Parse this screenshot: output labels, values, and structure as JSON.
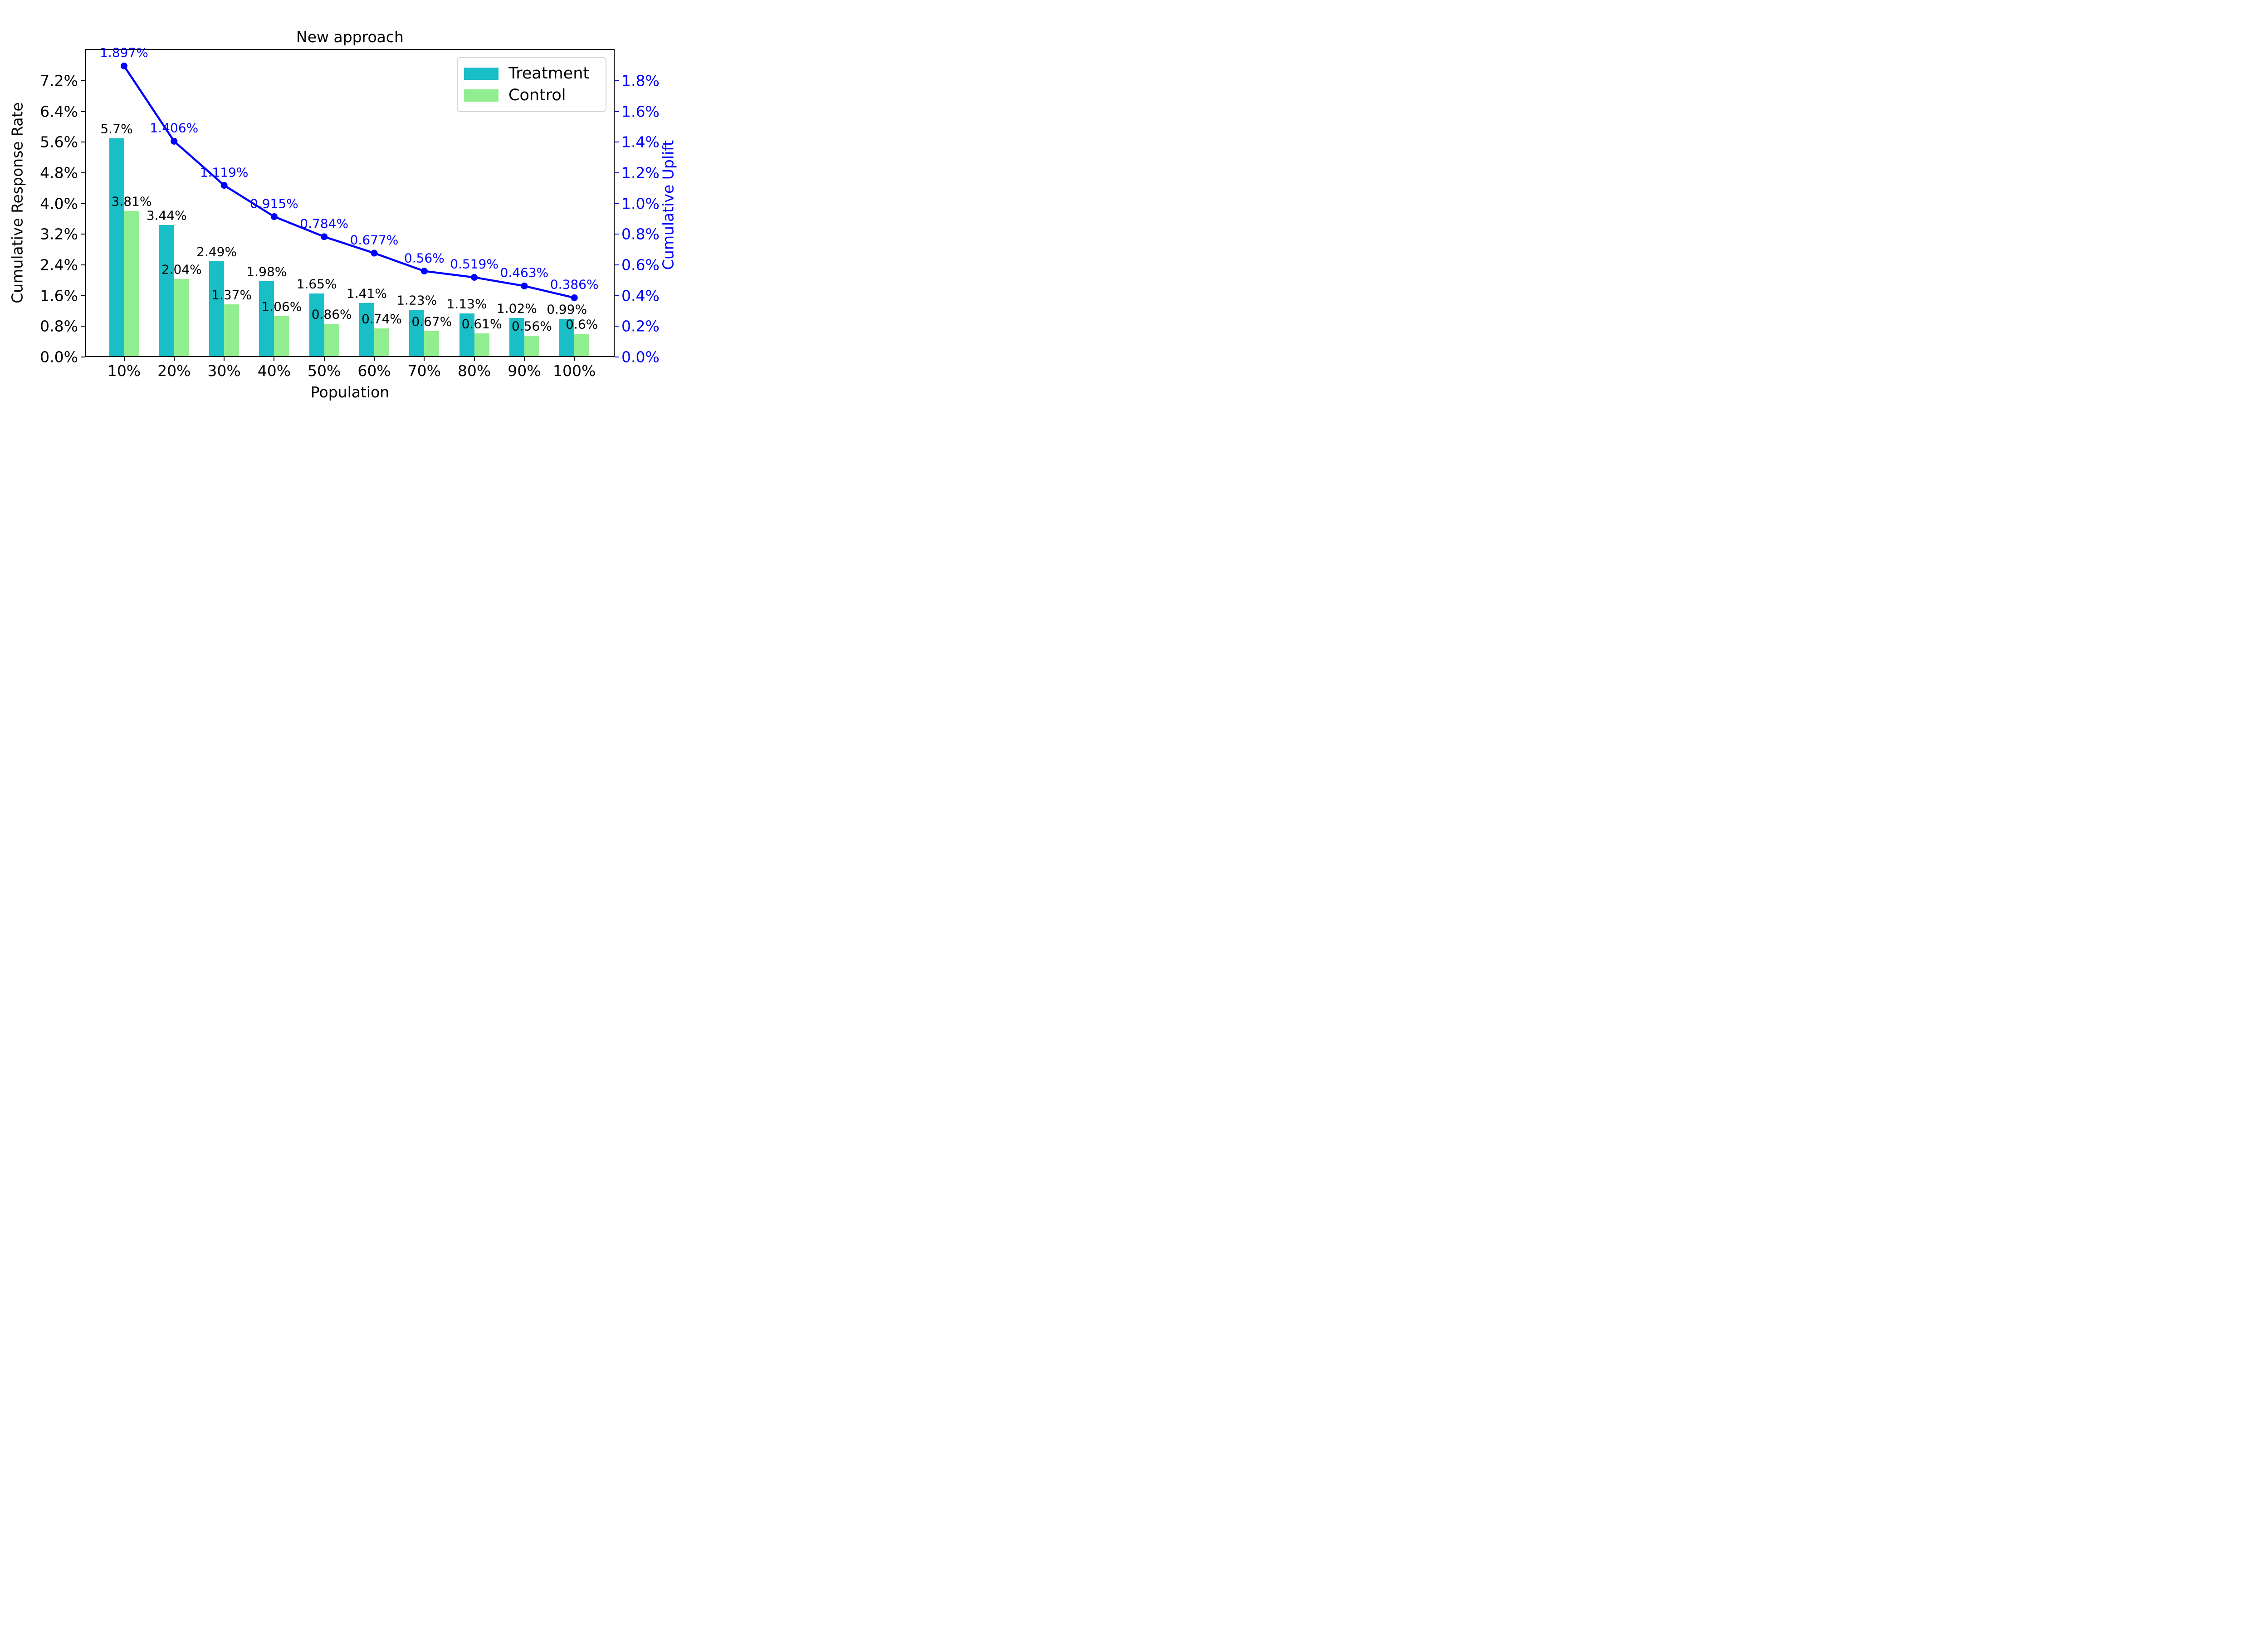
{
  "title": "New approach",
  "legend": {
    "items": [
      {
        "label": "Treatment",
        "color": "#1abec6"
      },
      {
        "label": "Control",
        "color": "#90ee90"
      }
    ]
  },
  "axes": {
    "x": {
      "label": "Population",
      "tick_labels": [
        "10%",
        "20%",
        "30%",
        "40%",
        "50%",
        "60%",
        "70%",
        "80%",
        "90%",
        "100%"
      ]
    },
    "y_left": {
      "label": "Cumulative Response Rate",
      "color": "#000000",
      "tick_labels": [
        "0.0%",
        "0.8%",
        "1.6%",
        "2.4%",
        "3.2%",
        "4.0%",
        "4.8%",
        "5.6%",
        "6.4%",
        "7.2%"
      ]
    },
    "y_right": {
      "label": "Cumulative Uplift",
      "color": "#0000ff",
      "tick_labels": [
        "0.0%",
        "0.2%",
        "0.4%",
        "0.6%",
        "0.8%",
        "1.0%",
        "1.2%",
        "1.4%",
        "1.6%",
        "1.8%"
      ]
    }
  },
  "chart_data": {
    "type": "bar",
    "title": "New approach",
    "xlabel": "Population",
    "ylabel": "Cumulative Response Rate",
    "ylabel_right": "Cumulative Uplift",
    "categories": [
      "10%",
      "20%",
      "30%",
      "40%",
      "50%",
      "60%",
      "70%",
      "80%",
      "90%",
      "100%"
    ],
    "ylim_left": [
      0,
      8.03
    ],
    "ylim_right": [
      0,
      2.0075
    ],
    "grid": false,
    "legend_position": "upper right",
    "series": [
      {
        "name": "Treatment",
        "type": "bar",
        "axis": "left",
        "color": "#1abec6",
        "values": [
          5.7,
          3.44,
          2.49,
          1.98,
          1.65,
          1.41,
          1.23,
          1.13,
          1.02,
          0.99
        ],
        "labels": [
          "5.7%",
          "3.44%",
          "2.49%",
          "1.98%",
          "1.65%",
          "1.41%",
          "1.23%",
          "1.13%",
          "1.02%",
          "0.99%"
        ]
      },
      {
        "name": "Control",
        "type": "bar",
        "axis": "left",
        "color": "#90ee90",
        "values": [
          3.81,
          2.04,
          1.37,
          1.06,
          0.86,
          0.74,
          0.67,
          0.61,
          0.56,
          0.6
        ],
        "labels": [
          "3.81%",
          "2.04%",
          "1.37%",
          "1.06%",
          "0.86%",
          "0.74%",
          "0.67%",
          "0.61%",
          "0.56%",
          "0.6%"
        ]
      },
      {
        "name": "Cumulative Uplift",
        "type": "line",
        "axis": "right",
        "color": "#0000ff",
        "marker": "circle",
        "values": [
          1.897,
          1.406,
          1.119,
          0.915,
          0.784,
          0.677,
          0.56,
          0.519,
          0.463,
          0.386
        ],
        "labels": [
          "1.897%",
          "1.406%",
          "1.119%",
          "0.915%",
          "0.784%",
          "0.677%",
          "0.56%",
          "0.519%",
          "0.463%",
          "0.386%"
        ]
      }
    ]
  }
}
